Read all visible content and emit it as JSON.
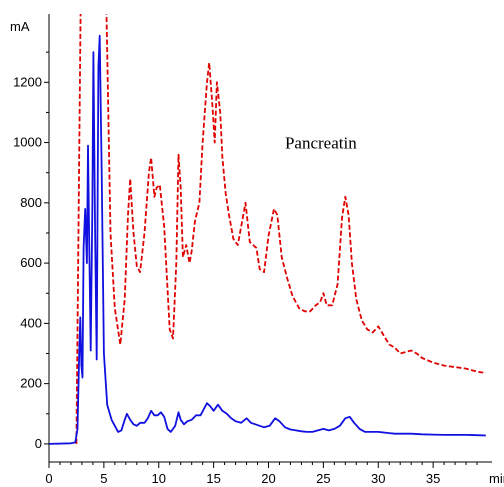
{
  "chart_data": {
    "type": "line",
    "title": "",
    "xlabel": "min",
    "ylabel": "mA",
    "xlim": [
      0,
      40
    ],
    "ylim": [
      -60,
      1420
    ],
    "x_ticks": [
      0,
      5,
      10,
      15,
      20,
      25,
      30,
      35
    ],
    "y_ticks": [
      0,
      200,
      400,
      600,
      800,
      1000,
      1200
    ],
    "grid": false,
    "legend": "none",
    "annotations": [
      {
        "text": "Pancreatin",
        "x": 21.5,
        "y": 1000
      }
    ],
    "series": [
      {
        "color": "#e00000",
        "style": "dashed",
        "points": [
          [
            2.5,
            0
          ],
          [
            2.9,
            1500
          ],
          [
            5.2,
            1500
          ],
          [
            5.6,
            700
          ],
          [
            6.0,
            450
          ],
          [
            6.5,
            330
          ],
          [
            6.9,
            480
          ],
          [
            7.2,
            760
          ],
          [
            7.4,
            880
          ],
          [
            7.7,
            700
          ],
          [
            8.0,
            590
          ],
          [
            8.3,
            570
          ],
          [
            8.7,
            700
          ],
          [
            9.1,
            900
          ],
          [
            9.3,
            950
          ],
          [
            9.6,
            820
          ],
          [
            9.8,
            850
          ],
          [
            10.1,
            860
          ],
          [
            10.5,
            720
          ],
          [
            11.0,
            380
          ],
          [
            11.3,
            350
          ],
          [
            11.6,
            600
          ],
          [
            11.8,
            960
          ],
          [
            12.0,
            850
          ],
          [
            12.2,
            620
          ],
          [
            12.5,
            660
          ],
          [
            12.8,
            600
          ],
          [
            13.0,
            640
          ],
          [
            13.3,
            740
          ],
          [
            13.7,
            800
          ],
          [
            14.0,
            1000
          ],
          [
            14.4,
            1200
          ],
          [
            14.6,
            1265
          ],
          [
            14.9,
            1120
          ],
          [
            15.1,
            1000
          ],
          [
            15.3,
            1200
          ],
          [
            15.6,
            1100
          ],
          [
            15.8,
            950
          ],
          [
            16.1,
            830
          ],
          [
            16.4,
            760
          ],
          [
            16.8,
            680
          ],
          [
            17.2,
            660
          ],
          [
            17.7,
            760
          ],
          [
            17.9,
            800
          ],
          [
            18.3,
            670
          ],
          [
            18.6,
            660
          ],
          [
            18.9,
            650
          ],
          [
            19.2,
            580
          ],
          [
            19.6,
            570
          ],
          [
            20.0,
            690
          ],
          [
            20.5,
            780
          ],
          [
            20.8,
            760
          ],
          [
            21.2,
            620
          ],
          [
            21.7,
            550
          ],
          [
            22.2,
            490
          ],
          [
            22.8,
            450
          ],
          [
            23.3,
            440
          ],
          [
            23.8,
            440
          ],
          [
            24.3,
            460
          ],
          [
            24.7,
            470
          ],
          [
            25.0,
            500
          ],
          [
            25.3,
            460
          ],
          [
            25.8,
            460
          ],
          [
            26.3,
            530
          ],
          [
            26.7,
            750
          ],
          [
            27.0,
            820
          ],
          [
            27.3,
            760
          ],
          [
            27.6,
            600
          ],
          [
            28.0,
            480
          ],
          [
            28.5,
            410
          ],
          [
            29.0,
            380
          ],
          [
            29.5,
            370
          ],
          [
            30.0,
            390
          ],
          [
            30.5,
            360
          ],
          [
            31.0,
            330
          ],
          [
            31.5,
            320
          ],
          [
            32.0,
            300
          ],
          [
            32.5,
            305
          ],
          [
            33.0,
            310
          ],
          [
            33.5,
            300
          ],
          [
            34.0,
            285
          ],
          [
            35.0,
            270
          ],
          [
            36.0,
            260
          ],
          [
            37.0,
            255
          ],
          [
            38.0,
            250
          ],
          [
            39.0,
            240
          ],
          [
            39.8,
            235
          ]
        ]
      },
      {
        "color": "#1010e0",
        "style": "solid",
        "points": [
          [
            0,
            0
          ],
          [
            2.0,
            2
          ],
          [
            2.4,
            5
          ],
          [
            2.6,
            50
          ],
          [
            2.75,
            300
          ],
          [
            2.85,
            420
          ],
          [
            2.95,
            260
          ],
          [
            3.05,
            220
          ],
          [
            3.15,
            650
          ],
          [
            3.3,
            780
          ],
          [
            3.45,
            600
          ],
          [
            3.55,
            990
          ],
          [
            3.65,
            700
          ],
          [
            3.8,
            310
          ],
          [
            3.95,
            800
          ],
          [
            4.05,
            1300
          ],
          [
            4.2,
            700
          ],
          [
            4.35,
            280
          ],
          [
            4.5,
            1250
          ],
          [
            4.62,
            1355
          ],
          [
            4.8,
            900
          ],
          [
            5.0,
            300
          ],
          [
            5.3,
            130
          ],
          [
            5.7,
            80
          ],
          [
            6.0,
            60
          ],
          [
            6.3,
            40
          ],
          [
            6.6,
            45
          ],
          [
            6.9,
            80
          ],
          [
            7.1,
            100
          ],
          [
            7.4,
            80
          ],
          [
            7.7,
            65
          ],
          [
            8.0,
            60
          ],
          [
            8.3,
            70
          ],
          [
            8.7,
            70
          ],
          [
            9.0,
            85
          ],
          [
            9.3,
            110
          ],
          [
            9.6,
            95
          ],
          [
            9.9,
            95
          ],
          [
            10.2,
            105
          ],
          [
            10.5,
            90
          ],
          [
            10.8,
            50
          ],
          [
            11.1,
            40
          ],
          [
            11.5,
            60
          ],
          [
            11.8,
            105
          ],
          [
            12.0,
            80
          ],
          [
            12.3,
            65
          ],
          [
            12.6,
            75
          ],
          [
            13.0,
            80
          ],
          [
            13.4,
            95
          ],
          [
            13.8,
            95
          ],
          [
            14.1,
            115
          ],
          [
            14.4,
            135
          ],
          [
            14.7,
            125
          ],
          [
            15.0,
            110
          ],
          [
            15.4,
            130
          ],
          [
            15.8,
            110
          ],
          [
            16.2,
            100
          ],
          [
            16.6,
            85
          ],
          [
            17.0,
            75
          ],
          [
            17.5,
            70
          ],
          [
            18.0,
            85
          ],
          [
            18.4,
            70
          ],
          [
            18.8,
            65
          ],
          [
            19.2,
            60
          ],
          [
            19.6,
            55
          ],
          [
            20.1,
            60
          ],
          [
            20.6,
            85
          ],
          [
            21.0,
            75
          ],
          [
            21.5,
            55
          ],
          [
            22.0,
            48
          ],
          [
            22.5,
            45
          ],
          [
            23.0,
            42
          ],
          [
            23.5,
            40
          ],
          [
            24.0,
            40
          ],
          [
            24.5,
            45
          ],
          [
            25.0,
            50
          ],
          [
            25.5,
            45
          ],
          [
            26.0,
            50
          ],
          [
            26.5,
            60
          ],
          [
            27.0,
            85
          ],
          [
            27.4,
            90
          ],
          [
            27.8,
            70
          ],
          [
            28.3,
            50
          ],
          [
            28.8,
            40
          ],
          [
            29.5,
            40
          ],
          [
            30.0,
            40
          ],
          [
            30.5,
            38
          ],
          [
            31.0,
            36
          ],
          [
            31.5,
            34
          ],
          [
            32.0,
            34
          ],
          [
            33.0,
            34
          ],
          [
            34.0,
            32
          ],
          [
            35.0,
            31
          ],
          [
            36.0,
            30
          ],
          [
            37.0,
            30
          ],
          [
            38.0,
            30
          ],
          [
            39.0,
            29
          ],
          [
            39.8,
            28
          ]
        ]
      }
    ]
  }
}
